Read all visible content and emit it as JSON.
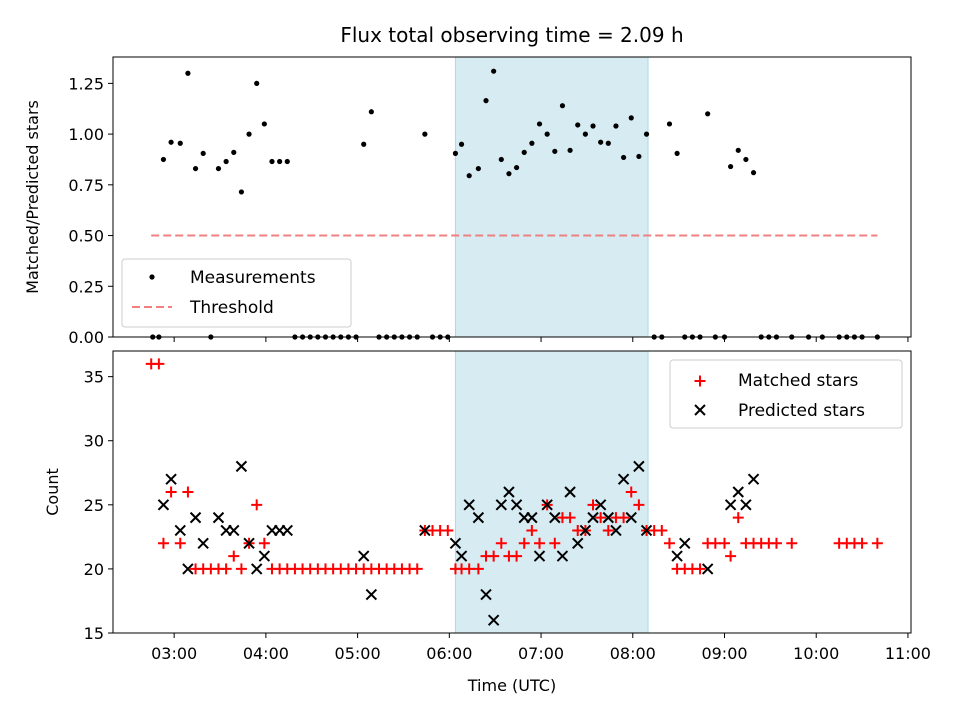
{
  "title": "Flux total observing time = 2.09 h",
  "colors": {
    "measurement": "#000000",
    "threshold": "#f08080",
    "matched": "#ff0000",
    "predicted": "#000000",
    "highlight": "#add8e6"
  },
  "chart_data": [
    {
      "type": "scatter",
      "ylabel": "Matched/Predicted stars",
      "ylim": [
        0,
        1.38
      ],
      "yticks": [
        "0.00",
        "0.25",
        "0.50",
        "0.75",
        "1.00",
        "1.25"
      ],
      "legend": {
        "placement": "lower-left",
        "entries": [
          "Measurements",
          "Threshold"
        ]
      },
      "threshold": {
        "value": 0.5,
        "x_start": "02:45",
        "x_end": "10:40"
      },
      "highlight_span": {
        "start": "06:04",
        "end": "08:10"
      },
      "series": [
        {
          "name": "Measurements",
          "points": [
            [
              "02:46",
              0
            ],
            [
              "02:50",
              0
            ],
            [
              "02:53",
              0.875
            ],
            [
              "02:58",
              0.96
            ],
            [
              "03:04",
              0.955
            ],
            [
              "03:09",
              1.3
            ],
            [
              "03:14",
              0.83
            ],
            [
              "03:19",
              0.905
            ],
            [
              "03:24",
              0
            ],
            [
              "03:29",
              0.83
            ],
            [
              "03:34",
              0.865
            ],
            [
              "03:39",
              0.91
            ],
            [
              "03:44",
              0.715
            ],
            [
              "03:49",
              1.0
            ],
            [
              "03:54",
              1.25
            ],
            [
              "03:59",
              1.05
            ],
            [
              "04:04",
              0.865
            ],
            [
              "04:09",
              0.865
            ],
            [
              "04:14",
              0.865
            ],
            [
              "04:19",
              0
            ],
            [
              "04:24",
              0
            ],
            [
              "04:29",
              0
            ],
            [
              "04:34",
              0
            ],
            [
              "04:39",
              0
            ],
            [
              "04:44",
              0
            ],
            [
              "04:49",
              0
            ],
            [
              "04:54",
              0
            ],
            [
              "04:59",
              0
            ],
            [
              "05:04",
              0.95
            ],
            [
              "05:09",
              1.11
            ],
            [
              "05:14",
              0
            ],
            [
              "05:19",
              0
            ],
            [
              "05:24",
              0
            ],
            [
              "05:29",
              0
            ],
            [
              "05:34",
              0
            ],
            [
              "05:39",
              0
            ],
            [
              "05:44",
              1.0
            ],
            [
              "05:49",
              0
            ],
            [
              "05:54",
              0
            ],
            [
              "05:59",
              0
            ],
            [
              "06:04",
              0.905
            ],
            [
              "06:08",
              0.95
            ],
            [
              "06:13",
              0.795
            ],
            [
              "06:19",
              0.83
            ],
            [
              "06:24",
              1.165
            ],
            [
              "06:29",
              1.31
            ],
            [
              "06:34",
              0.875
            ],
            [
              "06:39",
              0.805
            ],
            [
              "06:44",
              0.835
            ],
            [
              "06:49",
              0.91
            ],
            [
              "06:54",
              0.955
            ],
            [
              "06:59",
              1.05
            ],
            [
              "07:04",
              1.0
            ],
            [
              "07:09",
              0.915
            ],
            [
              "07:14",
              1.14
            ],
            [
              "07:19",
              0.92
            ],
            [
              "07:24",
              1.045
            ],
            [
              "07:29",
              1.0
            ],
            [
              "07:34",
              1.04
            ],
            [
              "07:39",
              0.96
            ],
            [
              "07:44",
              0.955
            ],
            [
              "07:49",
              1.04
            ],
            [
              "07:54",
              0.885
            ],
            [
              "07:59",
              1.08
            ],
            [
              "08:04",
              0.89
            ],
            [
              "08:09",
              1.0
            ],
            [
              "08:14",
              0
            ],
            [
              "08:19",
              0
            ],
            [
              "08:24",
              1.05
            ],
            [
              "08:29",
              0.905
            ],
            [
              "08:34",
              0
            ],
            [
              "08:39",
              0
            ],
            [
              "08:44",
              0
            ],
            [
              "08:49",
              1.1
            ],
            [
              "08:54",
              0
            ],
            [
              "09:00",
              0
            ],
            [
              "09:04",
              0.84
            ],
            [
              "09:09",
              0.92
            ],
            [
              "09:14",
              0.875
            ],
            [
              "09:19",
              0.81
            ],
            [
              "09:24",
              0
            ],
            [
              "09:29",
              0
            ],
            [
              "09:34",
              0
            ],
            [
              "09:44",
              0
            ],
            [
              "09:55",
              0
            ],
            [
              "10:04",
              0
            ],
            [
              "10:15",
              0
            ],
            [
              "10:20",
              0
            ],
            [
              "10:25",
              0
            ],
            [
              "10:30",
              0
            ],
            [
              "10:40",
              0
            ]
          ]
        }
      ]
    },
    {
      "type": "scatter",
      "xlabel": "Time (UTC)",
      "ylabel": "Count",
      "ylim": [
        15,
        37
      ],
      "yticks": [
        "15",
        "20",
        "25",
        "30",
        "35"
      ],
      "xlim": [
        "02:20",
        "11:02"
      ],
      "xticks": [
        "03:00",
        "04:00",
        "05:00",
        "06:00",
        "07:00",
        "08:00",
        "09:00",
        "10:00",
        "11:00"
      ],
      "legend": {
        "placement": "upper-right",
        "entries": [
          "Matched stars",
          "Predicted stars"
        ]
      },
      "highlight_span": {
        "start": "06:04",
        "end": "08:10"
      },
      "series": [
        {
          "name": "Matched stars",
          "points": [
            [
              "02:45",
              36
            ],
            [
              "02:50",
              36
            ],
            [
              "02:53",
              22
            ],
            [
              "02:58",
              26
            ],
            [
              "03:04",
              22
            ],
            [
              "03:09",
              26
            ],
            [
              "03:14",
              20
            ],
            [
              "03:19",
              20
            ],
            [
              "03:24",
              20
            ],
            [
              "03:29",
              20
            ],
            [
              "03:34",
              20
            ],
            [
              "03:39",
              21
            ],
            [
              "03:44",
              20
            ],
            [
              "03:49",
              22
            ],
            [
              "03:54",
              25
            ],
            [
              "03:59",
              22
            ],
            [
              "04:04",
              20
            ],
            [
              "04:09",
              20
            ],
            [
              "04:14",
              20
            ],
            [
              "04:19",
              20
            ],
            [
              "04:24",
              20
            ],
            [
              "04:29",
              20
            ],
            [
              "04:34",
              20
            ],
            [
              "04:39",
              20
            ],
            [
              "04:44",
              20
            ],
            [
              "04:49",
              20
            ],
            [
              "04:54",
              20
            ],
            [
              "04:59",
              20
            ],
            [
              "05:04",
              20
            ],
            [
              "05:09",
              20
            ],
            [
              "05:14",
              20
            ],
            [
              "05:19",
              20
            ],
            [
              "05:24",
              20
            ],
            [
              "05:29",
              20
            ],
            [
              "05:34",
              20
            ],
            [
              "05:39",
              20
            ],
            [
              "05:44",
              23
            ],
            [
              "05:49",
              23
            ],
            [
              "05:54",
              23
            ],
            [
              "05:59",
              23
            ],
            [
              "06:04",
              20
            ],
            [
              "06:08",
              20
            ],
            [
              "06:13",
              20
            ],
            [
              "06:19",
              20
            ],
            [
              "06:24",
              21
            ],
            [
              "06:29",
              21
            ],
            [
              "06:34",
              22
            ],
            [
              "06:39",
              21
            ],
            [
              "06:44",
              21
            ],
            [
              "06:49",
              22
            ],
            [
              "06:54",
              23
            ],
            [
              "06:59",
              22
            ],
            [
              "07:04",
              25
            ],
            [
              "07:09",
              22
            ],
            [
              "07:14",
              24
            ],
            [
              "07:19",
              24
            ],
            [
              "07:24",
              23
            ],
            [
              "07:29",
              23
            ],
            [
              "07:34",
              25
            ],
            [
              "07:39",
              24
            ],
            [
              "07:44",
              23
            ],
            [
              "07:49",
              24
            ],
            [
              "07:54",
              24
            ],
            [
              "07:59",
              26
            ],
            [
              "08:04",
              25
            ],
            [
              "08:09",
              23
            ],
            [
              "08:14",
              23
            ],
            [
              "08:19",
              23
            ],
            [
              "08:24",
              22
            ],
            [
              "08:29",
              20
            ],
            [
              "08:34",
              20
            ],
            [
              "08:39",
              20
            ],
            [
              "08:44",
              20
            ],
            [
              "08:49",
              22
            ],
            [
              "08:54",
              22
            ],
            [
              "09:00",
              22
            ],
            [
              "09:04",
              21
            ],
            [
              "09:09",
              24
            ],
            [
              "09:14",
              22
            ],
            [
              "09:19",
              22
            ],
            [
              "09:24",
              22
            ],
            [
              "09:29",
              22
            ],
            [
              "09:34",
              22
            ],
            [
              "09:44",
              22
            ],
            [
              "10:15",
              22
            ],
            [
              "10:20",
              22
            ],
            [
              "10:25",
              22
            ],
            [
              "10:30",
              22
            ],
            [
              "10:40",
              22
            ]
          ]
        },
        {
          "name": "Predicted stars",
          "points": [
            [
              "02:53",
              25
            ],
            [
              "02:58",
              27
            ],
            [
              "03:04",
              23
            ],
            [
              "03:09",
              20
            ],
            [
              "03:14",
              24
            ],
            [
              "03:19",
              22
            ],
            [
              "03:29",
              24
            ],
            [
              "03:34",
              23
            ],
            [
              "03:39",
              23
            ],
            [
              "03:44",
              28
            ],
            [
              "03:49",
              22
            ],
            [
              "03:54",
              20
            ],
            [
              "03:59",
              21
            ],
            [
              "04:04",
              23
            ],
            [
              "04:09",
              23
            ],
            [
              "04:14",
              23
            ],
            [
              "05:04",
              21
            ],
            [
              "05:09",
              18
            ],
            [
              "05:44",
              23
            ],
            [
              "06:04",
              22
            ],
            [
              "06:08",
              21
            ],
            [
              "06:13",
              25
            ],
            [
              "06:19",
              24
            ],
            [
              "06:24",
              18
            ],
            [
              "06:29",
              16
            ],
            [
              "06:34",
              25
            ],
            [
              "06:39",
              26
            ],
            [
              "06:44",
              25
            ],
            [
              "06:49",
              24
            ],
            [
              "06:54",
              24
            ],
            [
              "06:59",
              21
            ],
            [
              "07:04",
              25
            ],
            [
              "07:09",
              24
            ],
            [
              "07:14",
              21
            ],
            [
              "07:19",
              26
            ],
            [
              "07:24",
              22
            ],
            [
              "07:29",
              23
            ],
            [
              "07:34",
              24
            ],
            [
              "07:39",
              25
            ],
            [
              "07:44",
              24
            ],
            [
              "07:49",
              23
            ],
            [
              "07:54",
              27
            ],
            [
              "07:59",
              24
            ],
            [
              "08:04",
              28
            ],
            [
              "08:09",
              23
            ],
            [
              "08:29",
              21
            ],
            [
              "08:34",
              22
            ],
            [
              "08:49",
              20
            ],
            [
              "09:04",
              25
            ],
            [
              "09:09",
              26
            ],
            [
              "09:14",
              25
            ],
            [
              "09:19",
              27
            ]
          ]
        }
      ]
    }
  ]
}
